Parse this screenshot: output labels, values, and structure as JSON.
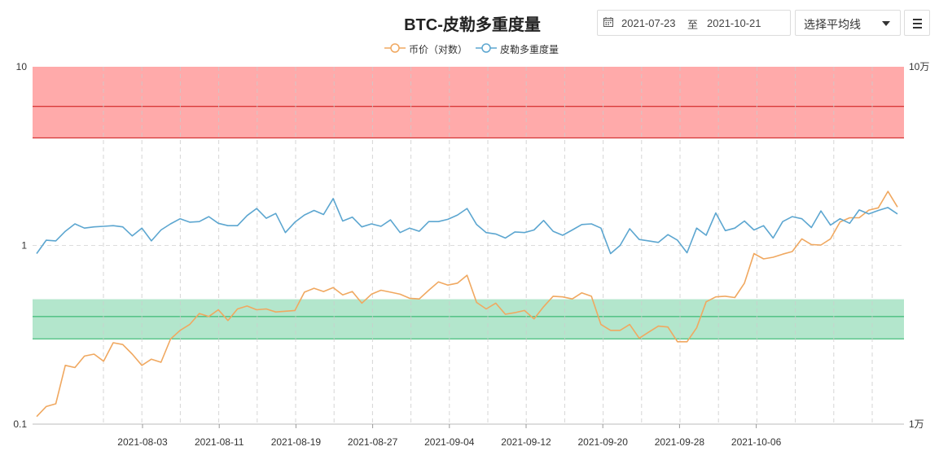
{
  "header": {
    "title": "BTC-皮勒多重度量",
    "date_start": "2021-07-23",
    "date_separator": "至",
    "date_end": "2021-10-21",
    "select_label": "选择平均线"
  },
  "colors": {
    "price": "#f0a860",
    "multiple": "#5ca6d0",
    "red_band": "#ffaaaa",
    "red_line": "#cc1111",
    "green_band": "#b3e6cc",
    "green_line": "#20b060"
  },
  "chart_data": {
    "type": "line",
    "x_ticks": [
      "2021-08-03",
      "2021-08-11",
      "2021-08-19",
      "2021-08-27",
      "2021-09-04",
      "2021-09-12",
      "2021-09-20",
      "2021-09-28",
      "2021-10-06"
    ],
    "y_left_ticks": [
      "10",
      "1",
      "0.1"
    ],
    "y_right_ticks": [
      "10万",
      "1万"
    ],
    "y_left_log_range": [
      0.1,
      10
    ],
    "y_right_log_range": [
      10000,
      100000
    ],
    "bands": [
      {
        "color": "red",
        "from": 4.0,
        "to": 10,
        "line": 6.0
      },
      {
        "color": "green",
        "from": 0.3,
        "to": 0.5,
        "line": 0.4
      }
    ],
    "legend_top": "center",
    "grid": true,
    "series": [
      {
        "name": "币价（对数）",
        "axis": "right",
        "values": [
          10500,
          11200,
          11400,
          14600,
          14400,
          15500,
          15700,
          15000,
          16900,
          16700,
          15700,
          14600,
          15200,
          14900,
          17300,
          18300,
          19000,
          20400,
          20000,
          20900,
          19500,
          21000,
          21400,
          20900,
          21000,
          20600,
          20700,
          20800,
          23400,
          24000,
          23500,
          24100,
          23000,
          23500,
          21800,
          23100,
          23700,
          23400,
          23100,
          22500,
          22400,
          23700,
          25000,
          24500,
          24800,
          26100,
          21900,
          21000,
          21800,
          20300,
          20500,
          20800,
          19700,
          21300,
          22800,
          22700,
          22400,
          23300,
          22800,
          19000,
          18300,
          18300,
          19000,
          17400,
          18100,
          18800,
          18700,
          17000,
          17000,
          18600,
          22000,
          22700,
          22800,
          22600,
          24800,
          30000,
          29000,
          29300,
          29900,
          30400,
          33000,
          31800,
          31700,
          33000,
          36800,
          37800,
          37800,
          39700,
          40300,
          44800,
          40500
        ]
      },
      {
        "name": "皮勒多重度量",
        "axis": "left",
        "values": [
          0.9,
          1.07,
          1.06,
          1.2,
          1.32,
          1.25,
          1.27,
          1.28,
          1.29,
          1.27,
          1.13,
          1.25,
          1.06,
          1.22,
          1.32,
          1.41,
          1.35,
          1.36,
          1.45,
          1.33,
          1.29,
          1.29,
          1.47,
          1.61,
          1.42,
          1.51,
          1.18,
          1.35,
          1.48,
          1.57,
          1.49,
          1.83,
          1.37,
          1.44,
          1.27,
          1.32,
          1.28,
          1.39,
          1.18,
          1.25,
          1.2,
          1.36,
          1.36,
          1.4,
          1.48,
          1.61,
          1.31,
          1.18,
          1.16,
          1.1,
          1.19,
          1.18,
          1.22,
          1.38,
          1.2,
          1.14,
          1.22,
          1.31,
          1.32,
          1.25,
          0.9,
          1.0,
          1.24,
          1.08,
          1.06,
          1.04,
          1.15,
          1.07,
          0.91,
          1.25,
          1.14,
          1.52,
          1.21,
          1.25,
          1.37,
          1.22,
          1.29,
          1.1,
          1.36,
          1.45,
          1.41,
          1.26,
          1.56,
          1.3,
          1.41,
          1.33,
          1.58,
          1.5,
          1.57,
          1.63,
          1.5
        ]
      }
    ]
  }
}
